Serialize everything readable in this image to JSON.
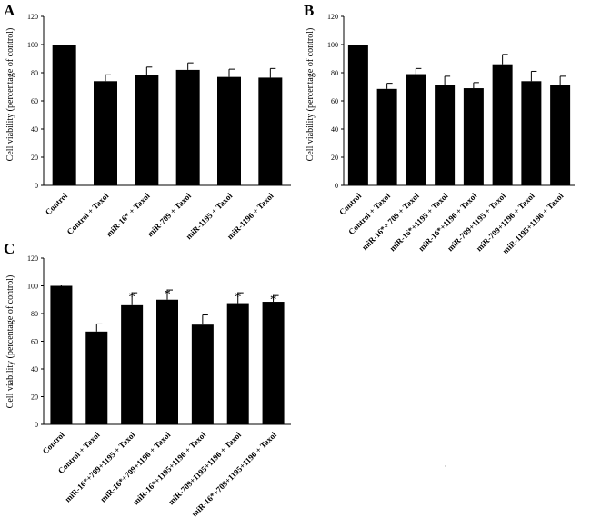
{
  "chart_data": [
    {
      "type": "bar",
      "panel_label": "A",
      "ylabel": "Cell viability (percentage of control)",
      "ylim": [
        0,
        120
      ],
      "yticks": [
        0,
        20,
        40,
        60,
        80,
        100,
        120
      ],
      "categories": [
        "Control",
        "Control + Taxol",
        "miR-16* + Taxol",
        "miR-709 + Taxol",
        "miR-1195 + Taxol",
        "miR-1196 + Taxol"
      ],
      "values": [
        100,
        74,
        78.5,
        82,
        77,
        76.5
      ],
      "errors": [
        0,
        4.5,
        5.5,
        5,
        5.5,
        6.5
      ],
      "significance": [
        "",
        "",
        "",
        "",
        "",
        ""
      ],
      "bar_color": "#000000",
      "grid": false
    },
    {
      "type": "bar",
      "panel_label": "B",
      "ylabel": "Cell viability (percentage of control)",
      "ylim": [
        0,
        120
      ],
      "yticks": [
        0,
        20,
        40,
        60,
        80,
        100,
        120
      ],
      "categories": [
        "Control",
        "Control + Taxol",
        "miR-16*+ 709 + Taxol",
        "miR-16*+1195 + Taxol",
        "miR-16*+1196 + Taxol",
        "miR-709+1195 + Taxol",
        "miR-709+1196 + Taxol",
        "miR-1195+1196 + Taxol"
      ],
      "values": [
        100,
        68.5,
        79,
        71,
        69,
        86,
        74,
        71.5
      ],
      "errors": [
        0,
        4,
        4,
        6.5,
        4,
        7,
        7,
        6
      ],
      "significance": [
        "",
        "",
        "",
        "",
        "",
        "",
        "",
        ""
      ],
      "bar_color": "#000000",
      "grid": false
    },
    {
      "type": "bar",
      "panel_label": "C",
      "ylabel": "Cell viability (percentage of control)",
      "ylim": [
        0,
        120
      ],
      "yticks": [
        0,
        20,
        40,
        60,
        80,
        100,
        120
      ],
      "categories": [
        "Control",
        "Control + Taxol",
        "miR-16*+709+1195 + Taxol",
        "miR-16*+709+1196 + Taxol",
        "miR-16*+1195+1196 + Taxol",
        "miR-709+1195+1196 + Taxol",
        "miR-16*+709+1195+1196 + Taxol"
      ],
      "values": [
        100,
        67,
        86,
        90,
        72,
        87.5,
        88.5
      ],
      "errors": [
        0,
        5.5,
        9,
        7,
        7,
        7.5,
        4.5
      ],
      "significance": [
        "*",
        "",
        "*",
        "*",
        "",
        "*",
        "*"
      ],
      "bar_color": "#000000",
      "grid": false
    }
  ]
}
